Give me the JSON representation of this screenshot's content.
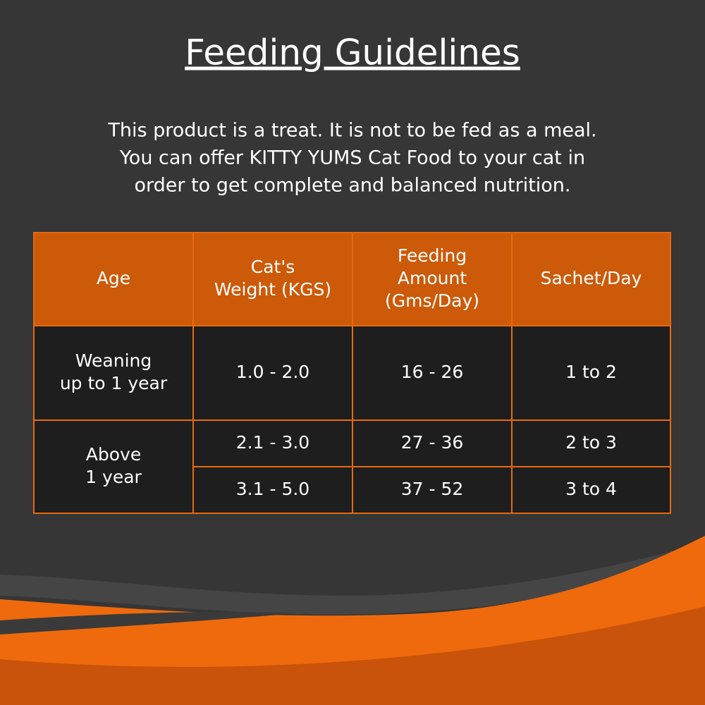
{
  "title": "Feeding Guidelines",
  "intro": [
    "This product is a treat. It is not to be fed as a meal.",
    "You can offer KITTY YUMS Cat Food to your cat in",
    "order to get complete and balanced nutrition."
  ],
  "table": {
    "headers": [
      [
        "Age"
      ],
      [
        "Cat's",
        "Weight (KGS)"
      ],
      [
        "Feeding",
        "Amount",
        "(Gms/Day)"
      ],
      [
        "Sachet/Day"
      ]
    ],
    "groups": [
      {
        "age": [
          "Weaning",
          "up to 1 year"
        ],
        "rows": [
          [
            "1.0 - 2.0",
            "16 - 26",
            "1 to 2"
          ]
        ]
      },
      {
        "age": [
          "Above",
          "1 year"
        ],
        "rows": [
          [
            "2.1 - 3.0",
            "27 - 36",
            "2 to 3"
          ],
          [
            "3.1 - 5.0",
            "37 - 52",
            "3 to 4"
          ]
        ]
      }
    ]
  }
}
